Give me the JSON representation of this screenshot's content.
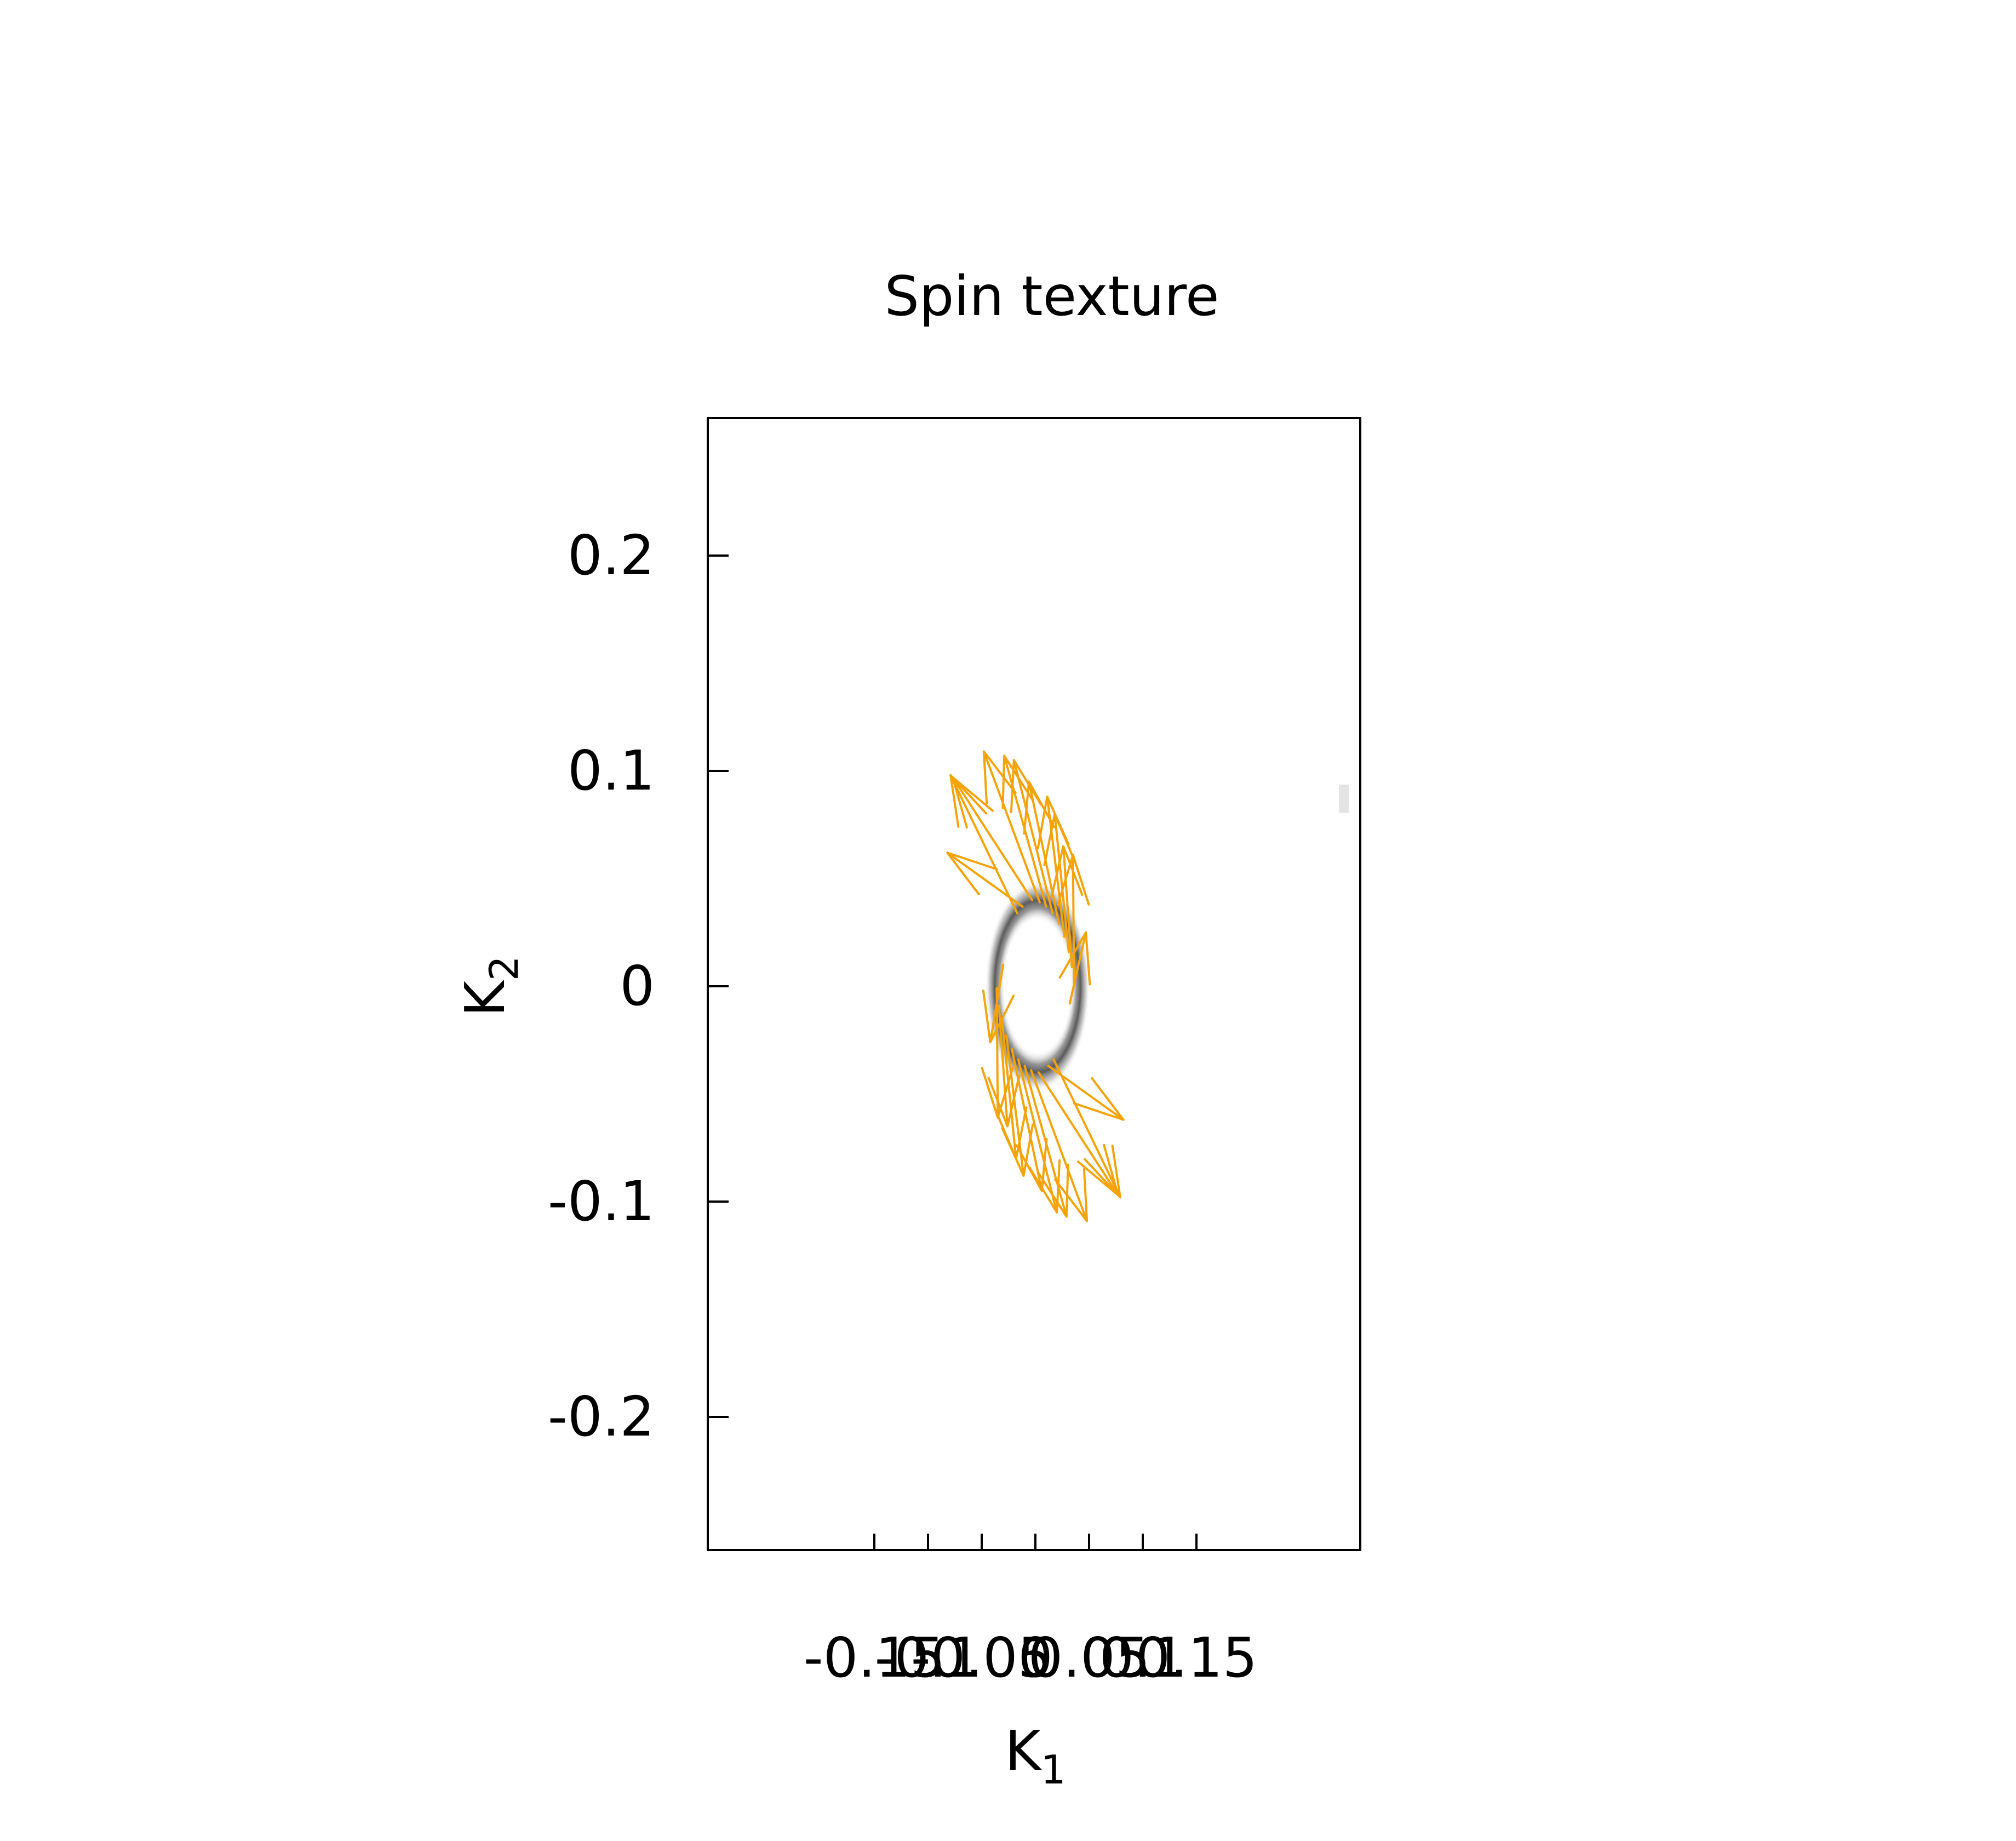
{
  "chart_data": {
    "type": "quiver",
    "title": "Spin texture",
    "xlabel": {
      "base": "K",
      "sub": "1"
    },
    "ylabel": {
      "base": "K",
      "sub": "2"
    },
    "xlim": [
      -0.15,
      0.15
    ],
    "ylim": [
      -0.26,
      0.265
    ],
    "xticks": [
      -0.15,
      -0.1,
      -0.05,
      0,
      0.05,
      0.1,
      0.15
    ],
    "xtick_labels": [
      "-0.15",
      "-0.1",
      "-0.05",
      "0",
      "0.05",
      "0.1",
      "0.15"
    ],
    "yticks": [
      0.2,
      0.1,
      0,
      -0.1,
      -0.2
    ],
    "ytick_labels": [
      "0.2",
      "0.1",
      "0",
      "-0.1",
      "-0.2"
    ],
    "grid": false,
    "legend": "none",
    "ring": {
      "center": [
        0.002,
        0.0
      ],
      "radius": 0.04,
      "color": "#555555"
    },
    "arrow_color": "#f5a30a",
    "arrows": [
      {
        "x": -0.003,
        "y": 0.04,
        "u": -0.074,
        "v": 0.057
      },
      {
        "x": 0.004,
        "y": 0.039,
        "u": -0.052,
        "v": 0.07
      },
      {
        "x": 0.01,
        "y": 0.037,
        "u": -0.039,
        "v": 0.07
      },
      {
        "x": 0.016,
        "y": 0.034,
        "u": -0.036,
        "v": 0.071
      },
      {
        "x": 0.022,
        "y": 0.029,
        "u": -0.028,
        "v": 0.066
      },
      {
        "x": 0.027,
        "y": 0.023,
        "u": -0.016,
        "v": 0.065
      },
      {
        "x": 0.031,
        "y": 0.016,
        "u": -0.013,
        "v": 0.064
      },
      {
        "x": 0.034,
        "y": 0.009,
        "u": -0.008,
        "v": 0.056
      },
      {
        "x": 0.036,
        "y": 0.001,
        "u": -0.001,
        "v": 0.06
      },
      {
        "x": -0.012,
        "y": 0.037,
        "u": -0.07,
        "v": 0.025
      },
      {
        "x": -0.017,
        "y": 0.034,
        "u": -0.062,
        "v": 0.064
      },
      {
        "x": 0.003,
        "y": -0.04,
        "u": 0.074,
        "v": -0.057
      },
      {
        "x": -0.004,
        "y": -0.039,
        "u": 0.052,
        "v": -0.07
      },
      {
        "x": -0.01,
        "y": -0.037,
        "u": 0.039,
        "v": -0.07
      },
      {
        "x": -0.016,
        "y": -0.034,
        "u": 0.036,
        "v": -0.071
      },
      {
        "x": -0.022,
        "y": -0.029,
        "u": 0.028,
        "v": -0.066
      },
      {
        "x": -0.027,
        "y": -0.023,
        "u": 0.016,
        "v": -0.065
      },
      {
        "x": -0.031,
        "y": -0.016,
        "u": 0.013,
        "v": -0.064
      },
      {
        "x": -0.034,
        "y": -0.009,
        "u": 0.008,
        "v": -0.056
      },
      {
        "x": -0.036,
        "y": -0.001,
        "u": 0.001,
        "v": -0.06
      },
      {
        "x": 0.012,
        "y": -0.037,
        "u": 0.07,
        "v": -0.025
      },
      {
        "x": 0.017,
        "y": -0.034,
        "u": 0.062,
        "v": -0.064
      },
      {
        "x": -0.03,
        "y": 0.01,
        "u": -0.012,
        "v": -0.036
      },
      {
        "x": 0.032,
        "y": -0.008,
        "u": 0.015,
        "v": 0.033
      }
    ]
  }
}
